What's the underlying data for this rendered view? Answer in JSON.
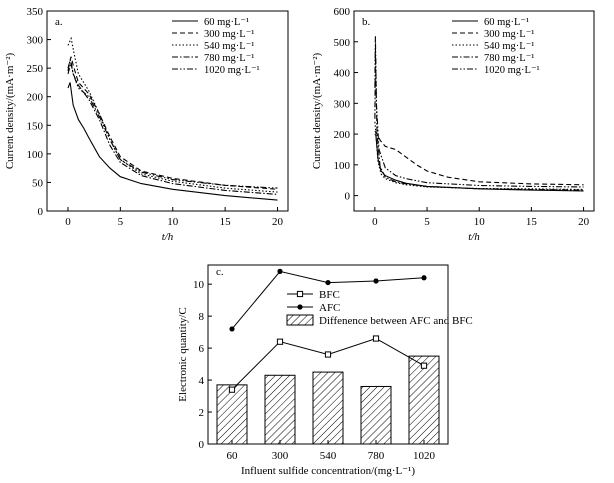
{
  "chart_data": [
    {
      "id": "a",
      "type": "line",
      "panel_label": "a.",
      "xlabel": "t/h",
      "ylabel": "Current density/(mA·m⁻²)",
      "xlim": [
        -2,
        21
      ],
      "ylim": [
        0,
        350
      ],
      "xticks": [
        0,
        5,
        10,
        15,
        20
      ],
      "yticks": [
        0,
        50,
        100,
        150,
        200,
        250,
        300,
        350
      ],
      "xtick_labels": [
        "0",
        "5",
        "10",
        "15",
        "20"
      ],
      "ytick_labels": [
        "0",
        "50",
        "100",
        "150",
        "200",
        "250",
        "300",
        "350"
      ],
      "legend": "top-right",
      "series": [
        {
          "name": "60 mg·L⁻¹",
          "style": "solid",
          "x": [
            0,
            0.2,
            0.5,
            1,
            1.5,
            2,
            3,
            4,
            5,
            7,
            10,
            15,
            20
          ],
          "y": [
            215,
            225,
            185,
            160,
            145,
            128,
            95,
            75,
            60,
            48,
            38,
            27,
            19
          ]
        },
        {
          "name": "300 mg·L⁻¹",
          "style": "dash",
          "x": [
            0,
            0.3,
            0.5,
            1,
            2,
            3,
            4,
            5,
            7,
            10,
            15,
            20
          ],
          "y": [
            250,
            270,
            255,
            225,
            205,
            170,
            130,
            95,
            70,
            57,
            45,
            38
          ]
        },
        {
          "name": "540 mg·L⁻¹",
          "style": "dot",
          "x": [
            0,
            0.3,
            0.6,
            1,
            2,
            3,
            4,
            5,
            7,
            10,
            15,
            20
          ],
          "y": [
            290,
            302,
            275,
            240,
            210,
            170,
            125,
            90,
            65,
            52,
            40,
            33
          ]
        },
        {
          "name": "780 mg·L⁻¹",
          "style": "dashdot",
          "x": [
            0,
            0.3,
            0.5,
            1,
            2,
            3,
            4,
            5,
            7,
            10,
            15,
            20
          ],
          "y": [
            240,
            260,
            240,
            220,
            195,
            160,
            115,
            85,
            62,
            48,
            36,
            29
          ]
        },
        {
          "name": "1020 mg·L⁻¹",
          "style": "dashdotdot",
          "x": [
            0,
            0.2,
            0.5,
            1,
            2,
            3,
            4,
            5,
            7,
            10,
            15,
            20
          ],
          "y": [
            245,
            265,
            240,
            215,
            200,
            165,
            125,
            90,
            68,
            55,
            45,
            40
          ]
        }
      ]
    },
    {
      "id": "b",
      "type": "line",
      "panel_label": "b.",
      "xlabel": "t/h",
      "ylabel": "Current density/(mA·m⁻²)",
      "xlim": [
        -2,
        21
      ],
      "ylim": [
        -50,
        600
      ],
      "xticks": [
        0,
        5,
        10,
        15,
        20
      ],
      "yticks": [
        0,
        100,
        200,
        300,
        400,
        500,
        600
      ],
      "xtick_labels": [
        "0",
        "5",
        "10",
        "15",
        "20"
      ],
      "ytick_labels": [
        "0",
        "100",
        "200",
        "300",
        "400",
        "500",
        "600"
      ],
      "legend": "top-right",
      "series": [
        {
          "name": "60 mg·L⁻¹",
          "style": "solid",
          "x": [
            0,
            0.1,
            0.3,
            0.6,
            1,
            2,
            3,
            5,
            10,
            15,
            20
          ],
          "y": [
            200,
            195,
            120,
            80,
            65,
            50,
            40,
            30,
            22,
            18,
            15
          ]
        },
        {
          "name": "300 mg·L⁻¹",
          "style": "dash",
          "x": [
            0,
            0.2,
            0.5,
            1,
            2,
            3,
            4,
            5,
            7,
            10,
            15,
            20
          ],
          "y": [
            210,
            200,
            180,
            160,
            150,
            125,
            100,
            80,
            60,
            45,
            38,
            35
          ]
        },
        {
          "name": "540 mg·L⁻¹",
          "style": "dot",
          "x": [
            0,
            0.1,
            0.3,
            0.6,
            1,
            2,
            3,
            5,
            10,
            15,
            20
          ],
          "y": [
            240,
            200,
            110,
            70,
            55,
            42,
            35,
            28,
            23,
            22,
            20
          ]
        },
        {
          "name": "780 mg·L⁻¹",
          "style": "dashdot",
          "x": [
            0,
            0.05,
            0.2,
            0.5,
            1,
            2,
            3,
            5,
            10,
            15,
            20
          ],
          "y": [
            250,
            480,
            200,
            95,
            60,
            45,
            38,
            30,
            22,
            20,
            18
          ]
        },
        {
          "name": "1020 mg·L⁻¹",
          "style": "dashdotdot",
          "x": [
            0,
            0.05,
            0.15,
            0.4,
            1,
            2,
            3,
            5,
            10,
            15,
            20
          ],
          "y": [
            350,
            520,
            300,
            150,
            90,
            65,
            55,
            42,
            33,
            30,
            28
          ]
        }
      ]
    },
    {
      "id": "c",
      "type": "bar",
      "panel_label": "c.",
      "xlabel": "Influent sulfide concentration/(mg·L⁻¹)",
      "ylabel": "Electronic quantity/C",
      "categories": [
        "60",
        "300",
        "540",
        "780",
        "1020"
      ],
      "ylim": [
        0,
        11.2
      ],
      "yticks": [
        0,
        2,
        4,
        6,
        8,
        10
      ],
      "ytick_labels": [
        "0",
        "2",
        "4",
        "6",
        "8",
        "10"
      ],
      "legend": "top-center",
      "series": [
        {
          "name": "BFC",
          "kind": "line",
          "marker": "open-square",
          "values": [
            3.4,
            6.4,
            5.6,
            6.6,
            4.9
          ]
        },
        {
          "name": "AFC",
          "kind": "line",
          "marker": "filled-circle",
          "values": [
            7.2,
            10.8,
            10.1,
            10.2,
            10.4
          ]
        },
        {
          "name": "Diffenence between AFC and BFC",
          "kind": "bar",
          "fill": "hatch",
          "values": [
            3.7,
            4.3,
            4.5,
            3.6,
            5.5
          ]
        }
      ]
    }
  ]
}
